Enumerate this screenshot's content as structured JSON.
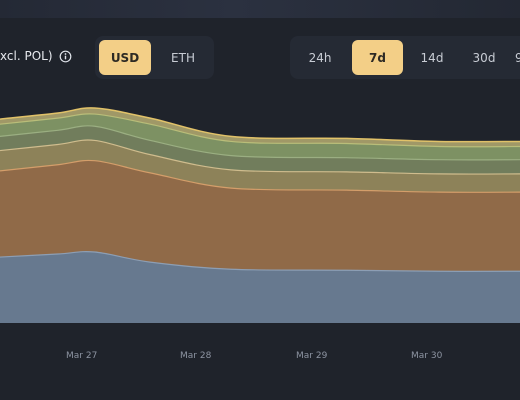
{
  "header": {
    "title": "xcl. POL)",
    "info_icon": "info-icon",
    "currency_options": [
      {
        "label": "USD",
        "active": true
      },
      {
        "label": "ETH",
        "active": false
      }
    ],
    "range_options": [
      {
        "label": "24h",
        "active": false
      },
      {
        "label": "7d",
        "active": true
      },
      {
        "label": "14d",
        "active": false
      },
      {
        "label": "30d",
        "active": false
      },
      {
        "label": "9",
        "active": false
      }
    ],
    "accent": "#f3cf87"
  },
  "chart_data": {
    "type": "area",
    "x": [
      0,
      0.5,
      0.82,
      1.3,
      2.0,
      3.0,
      3.8,
      4.5
    ],
    "x_tick_labels": [
      "Mar 27",
      "Mar 28",
      "Mar 29",
      "Mar 30"
    ],
    "series": [
      {
        "color": "#6b7e95",
        "values": [
          65,
          68,
          70,
          60,
          53,
          52,
          51,
          51
        ]
      },
      {
        "color": "#a1744c",
        "values": [
          85,
          88,
          90,
          88,
          80,
          79,
          78,
          78
        ]
      },
      {
        "color": "#9d9060",
        "values": [
          20,
          20,
          20,
          18,
          18,
          18,
          18,
          18
        ]
      },
      {
        "color": "#7d8a63",
        "values": [
          14,
          14,
          14,
          14,
          14,
          14,
          14,
          14
        ]
      },
      {
        "color": "#8ba06b",
        "values": [
          12,
          12,
          12,
          16,
          14,
          14,
          13,
          13
        ]
      },
      {
        "color": "#b3a86f",
        "values": [
          5,
          5,
          6,
          6,
          5,
          5,
          5,
          5
        ]
      }
    ],
    "stroke_colors": [
      "#8ea1b8",
      "#d8a06c",
      "#d4c090",
      "#9db184",
      "#bcc07a",
      "#e8c76a"
    ],
    "ylim": [
      0,
      210
    ],
    "grid": false,
    "legend": "none"
  }
}
